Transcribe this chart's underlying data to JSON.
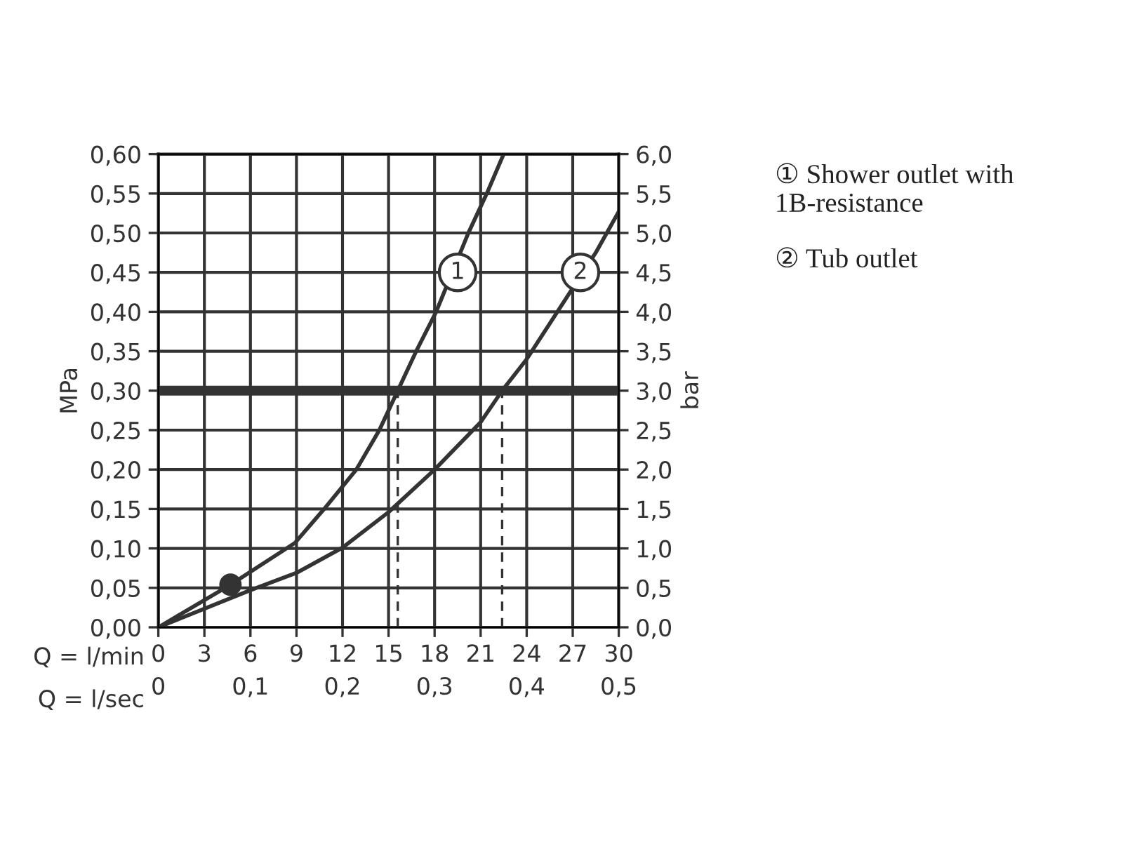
{
  "chart_data": {
    "type": "line",
    "xlabel": "Q = l/min",
    "x2label": "Q = l/sec",
    "ylabel": "MPa",
    "y2label": "bar",
    "xlim": [
      0,
      30
    ],
    "xticks": [
      0,
      3,
      6,
      9,
      12,
      15,
      18,
      21,
      24,
      27,
      30
    ],
    "x2lim": [
      0,
      0.5
    ],
    "x2ticks": [
      0,
      {
        "value": 0.1,
        "label": "0,1"
      },
      {
        "value": 0.2,
        "label": "0,2"
      },
      {
        "value": 0.3,
        "label": "0,3"
      },
      {
        "value": 0.4,
        "label": "0,4"
      },
      {
        "value": 0.5,
        "label": "0,5"
      }
    ],
    "ylim": [
      0,
      0.6
    ],
    "yticks": [
      {
        "value": 0,
        "label": "0,00"
      },
      {
        "value": 0.05,
        "label": "0,05"
      },
      {
        "value": 0.1,
        "label": "0,10"
      },
      {
        "value": 0.15,
        "label": "0,15"
      },
      {
        "value": 0.2,
        "label": "0,20"
      },
      {
        "value": 0.25,
        "label": "0,25"
      },
      {
        "value": 0.3,
        "label": "0,30"
      },
      {
        "value": 0.35,
        "label": "0,35"
      },
      {
        "value": 0.4,
        "label": "0,40"
      },
      {
        "value": 0.45,
        "label": "0,45"
      },
      {
        "value": 0.5,
        "label": "0,50"
      },
      {
        "value": 0.55,
        "label": "0,55"
      },
      {
        "value": 0.6,
        "label": "0,60"
      }
    ],
    "y2lim": [
      0,
      6
    ],
    "y2ticks": [
      {
        "value": 0,
        "label": "0,0"
      },
      {
        "value": 0.5,
        "label": "0,5"
      },
      {
        "value": 1,
        "label": "1,0"
      },
      {
        "value": 1.5,
        "label": "1,5"
      },
      {
        "value": 2,
        "label": "2,0"
      },
      {
        "value": 2.5,
        "label": "2,5"
      },
      {
        "value": 3,
        "label": "3,0"
      },
      {
        "value": 3.5,
        "label": "3,5"
      },
      {
        "value": 4,
        "label": "4,0"
      },
      {
        "value": 4.5,
        "label": "4,5"
      },
      {
        "value": 5,
        "label": "5,0"
      },
      {
        "value": 5.5,
        "label": "5,5"
      },
      {
        "value": 6,
        "label": "6,0"
      }
    ],
    "grid": true,
    "series": [
      {
        "color": "#333333",
        "line_style": "solid",
        "x": [
          0,
          4.7,
          8.9,
          10.8,
          12.9,
          14.4,
          15.6,
          16.8,
          18.1,
          20.2,
          21.4,
          22.5
        ],
        "values": [
          0,
          0.054,
          0.107,
          0.15,
          0.2,
          0.25,
          0.3,
          0.35,
          0.4,
          0.5,
          0.55,
          0.6
        ]
      },
      {
        "color": "#333333",
        "line_style": "solid",
        "x": [
          0,
          6,
          9,
          12,
          15,
          18,
          21,
          22.4,
          24,
          25.5,
          28.5,
          30
        ],
        "values": [
          0,
          0.047,
          0.069,
          0.101,
          0.146,
          0.2,
          0.26,
          0.3,
          0.34,
          0.385,
          0.475,
          0.527
        ]
      },
      {
        "type": "scatter",
        "color": "#333333",
        "marker": "circle",
        "x": [
          4.7
        ],
        "values": [
          0.054
        ]
      },
      {
        "color": "#333333",
        "line_style": "dashed",
        "x": [
          15.6,
          15.6
        ],
        "values": [
          0,
          0.3
        ]
      },
      {
        "color": "#333333",
        "line_style": "dashed",
        "x": [
          22.4,
          22.4
        ],
        "values": [
          0,
          0.3
        ]
      }
    ],
    "ref_lines": [
      {
        "axis": "y",
        "value": 0.3,
        "color": "#333333",
        "line_style": "solid"
      }
    ],
    "annotations": [
      {
        "text": "1",
        "x": 19.5,
        "y": 0.45
      },
      {
        "text": "2",
        "x": 27.5,
        "y": 0.45
      },
      "① Shower outlet with 1B-resistance",
      "② Tub outlet"
    ]
  }
}
